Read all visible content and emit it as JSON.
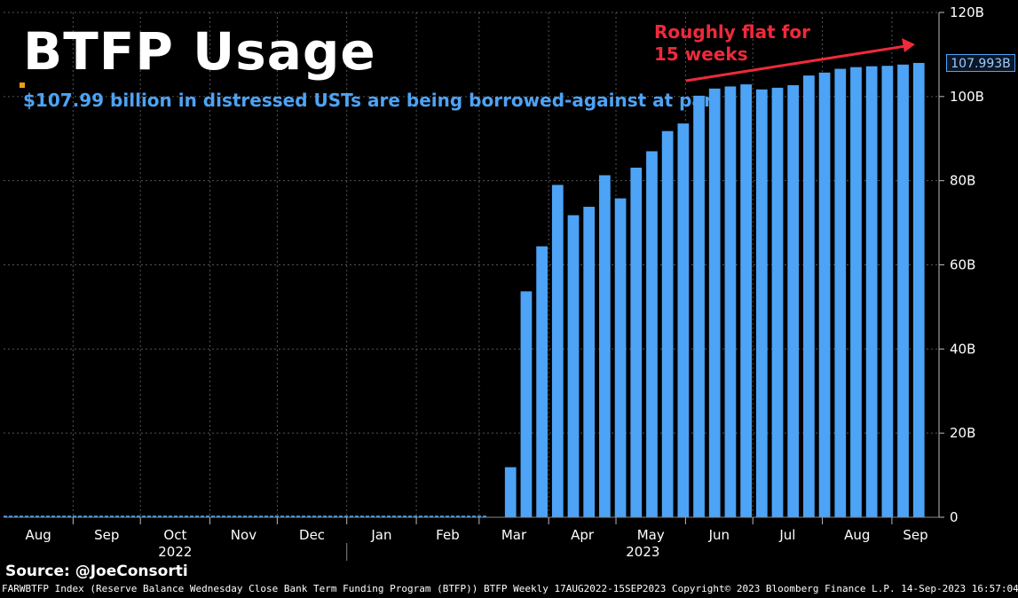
{
  "title": "BTFP Usage",
  "subtitle": "$107.99 billion in distressed USTs are being borrowed-against at par",
  "annotation": "Roughly flat for\n15 weeks",
  "source": "Source: @JoeConsorti",
  "footer": "FARWBTFP Index (Reserve Balance Wednesday Close Bank Term Funding Program (BTFP)) BTFP  Weekly 17AUG2022-15SEP2023 Copyright© 2023 Bloomberg Finance L.P. 14-Sep-2023 16:57:04",
  "last_value_label": "107.993B",
  "colors": {
    "bar": "#4da3f5",
    "grid": "#555555",
    "annotation": "#ee2a3b",
    "background": "#000000"
  },
  "chart_data": {
    "type": "bar",
    "x_month_labels": [
      "Aug",
      "Sep",
      "Oct",
      "Nov",
      "Dec",
      "Jan",
      "Feb",
      "Mar",
      "Apr",
      "May",
      "Jun",
      "Jul",
      "Aug",
      "Sep"
    ],
    "x_year_labels": [
      "2022",
      "2023"
    ],
    "y_tick_labels": [
      "0",
      "20B",
      "40B",
      "60B",
      "80B",
      "100B",
      "120B"
    ],
    "ylim": [
      0,
      120
    ],
    "y_unit": "B",
    "y_axis_position": "right",
    "grid": true,
    "weeks": [
      "2022-08-17",
      "2022-08-24",
      "2022-08-31",
      "2022-09-07",
      "2022-09-14",
      "2022-09-21",
      "2022-09-28",
      "2022-10-05",
      "2022-10-12",
      "2022-10-19",
      "2022-10-26",
      "2022-11-02",
      "2022-11-09",
      "2022-11-16",
      "2022-11-23",
      "2022-11-30",
      "2022-12-07",
      "2022-12-14",
      "2022-12-21",
      "2022-12-28",
      "2023-01-04",
      "2023-01-11",
      "2023-01-18",
      "2023-01-25",
      "2023-02-01",
      "2023-02-08",
      "2023-02-15",
      "2023-02-22",
      "2023-03-01",
      "2023-03-08",
      "2023-03-15",
      "2023-03-22",
      "2023-03-29",
      "2023-04-05",
      "2023-04-12",
      "2023-04-19",
      "2023-04-26",
      "2023-05-03",
      "2023-05-10",
      "2023-05-17",
      "2023-05-24",
      "2023-05-31",
      "2023-06-07",
      "2023-06-14",
      "2023-06-21",
      "2023-06-28",
      "2023-07-05",
      "2023-07-12",
      "2023-07-19",
      "2023-07-26",
      "2023-08-02",
      "2023-08-09",
      "2023-08-16",
      "2023-08-23",
      "2023-08-30",
      "2023-09-06",
      "2023-09-13"
    ],
    "values": [
      0,
      0,
      0,
      0,
      0,
      0,
      0,
      0,
      0,
      0,
      0,
      0,
      0,
      0,
      0,
      0,
      0,
      0,
      0,
      0,
      0,
      0,
      0,
      0,
      0,
      0,
      0,
      0,
      0,
      0,
      11.9,
      53.7,
      64.4,
      79.0,
      71.8,
      73.8,
      81.3,
      75.8,
      83.1,
      87.0,
      91.8,
      93.6,
      100.2,
      101.9,
      102.4,
      102.9,
      101.7,
      102.1,
      102.7,
      105.0,
      105.7,
      106.6,
      107.0,
      107.2,
      107.3,
      107.6,
      107.993
    ],
    "last_value": 107.993
  }
}
